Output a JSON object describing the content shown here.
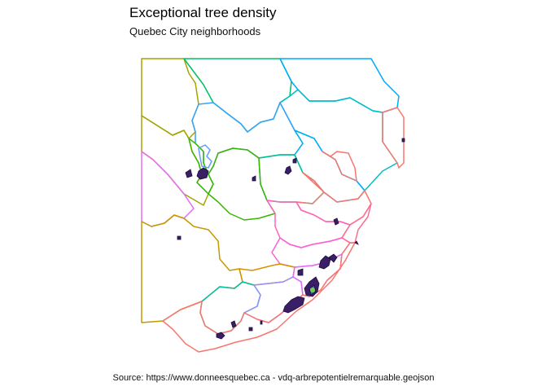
{
  "title": "Exceptional tree density",
  "subtitle": "Quebec City neighborhoods",
  "caption": "Source: https://www.donneesquebec.ca - vdq-arbrepotentielremarquable.geojson",
  "palette": {
    "density_low": "#3b1f66",
    "density_mid": "#44639a",
    "density_high": "#6ecc55"
  }
}
